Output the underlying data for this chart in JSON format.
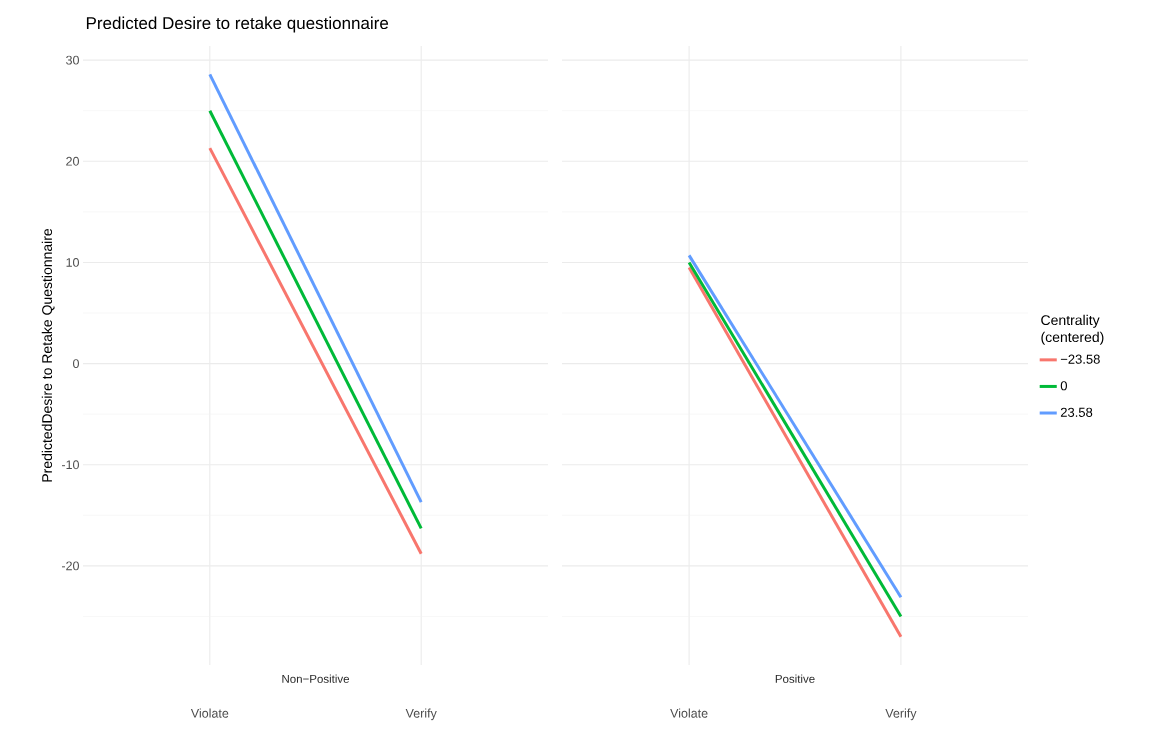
{
  "chart_data": [
    {
      "type": "line",
      "title": "Predicted Desire to retake questionnaire",
      "ylabel": "PredictedDesire to Retake Questionnaire",
      "xlabel": "Non−Positive",
      "categories": [
        "Violate",
        "Verify"
      ],
      "series": [
        {
          "color": "#f8766d",
          "values": [
            21.3,
            -18.8
          ]
        },
        {
          "color": "#00ba38",
          "values": [
            25.0,
            -16.3
          ]
        },
        {
          "color": "#619cff",
          "values": [
            28.6,
            -13.7
          ]
        }
      ],
      "ylim": [
        -29.8,
        31.4
      ],
      "yticks": [
        -20,
        -10,
        0,
        10,
        20,
        30
      ],
      "grid": true,
      "legend": false
    },
    {
      "type": "line",
      "xlabel": "Positive",
      "legend_title": "Centrality (centered)",
      "categories": [
        "Violate",
        "Verify"
      ],
      "series": [
        {
          "name": "−23.58",
          "color": "#f8766d",
          "values": [
            9.5,
            -27.0
          ]
        },
        {
          "name": "0",
          "color": "#00ba38",
          "values": [
            10.0,
            -25.0
          ]
        },
        {
          "name": "23.58",
          "color": "#619cff",
          "values": [
            10.7,
            -23.1
          ]
        }
      ],
      "ylim": [
        -29.8,
        31.4
      ],
      "yticks": [
        -20,
        -10,
        0,
        10,
        20,
        30
      ],
      "grid": true,
      "legend": "right",
      "tick_labels": "x"
    }
  ]
}
